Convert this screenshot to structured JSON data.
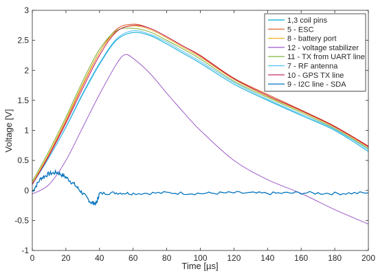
{
  "chart_data": {
    "type": "line",
    "xlabel": "Time [µs]",
    "ylabel": "Voltage [V]",
    "xlim": [
      0,
      200
    ],
    "ylim": [
      -1,
      3
    ],
    "xticks": [
      0,
      20,
      40,
      60,
      80,
      100,
      120,
      140,
      160,
      180,
      200
    ],
    "yticks": [
      -1,
      -0.5,
      0,
      0.5,
      1,
      1.5,
      2,
      2.5,
      3
    ],
    "xtick_labels": [
      "0",
      "20",
      "40",
      "60",
      "80",
      "100",
      "120",
      "140",
      "160",
      "180",
      "200"
    ],
    "ytick_labels": [
      "-1",
      "-0.5",
      "0",
      "0.5",
      "1",
      "1.5",
      "2",
      "2.5",
      "3"
    ],
    "grid": false,
    "legend_position": "top-right",
    "series": [
      {
        "name": "1,3 coil pins",
        "color": "#00a6d6",
        "x": [
          0,
          10,
          20,
          30,
          40,
          50,
          60,
          70,
          80,
          90,
          100,
          120,
          140,
          160,
          180,
          200
        ],
        "y": [
          0.1,
          0.55,
          1.05,
          1.6,
          2.1,
          2.5,
          2.63,
          2.58,
          2.44,
          2.28,
          2.12,
          1.77,
          1.5,
          1.25,
          1.0,
          0.65
        ]
      },
      {
        "name": "5 - ESC",
        "color": "#d95319",
        "x": [
          0,
          10,
          20,
          30,
          40,
          50,
          60,
          70,
          80,
          90,
          100,
          120,
          140,
          160,
          180,
          200
        ],
        "y": [
          0.1,
          0.6,
          1.15,
          1.75,
          2.3,
          2.68,
          2.77,
          2.7,
          2.56,
          2.4,
          2.25,
          1.87,
          1.6,
          1.34,
          1.07,
          0.74
        ]
      },
      {
        "name": "8 - battery port",
        "color": "#edb120",
        "x": [
          0,
          10,
          20,
          30,
          40,
          50,
          60,
          70,
          80,
          90,
          100,
          120,
          140,
          160,
          180,
          200
        ],
        "y": [
          0.12,
          0.62,
          1.18,
          1.77,
          2.3,
          2.65,
          2.74,
          2.68,
          2.54,
          2.38,
          2.22,
          1.85,
          1.57,
          1.32,
          1.05,
          0.72
        ]
      },
      {
        "name": "12 - voltage stabilizer",
        "color": "#9c5ac8",
        "x": [
          0,
          10,
          20,
          30,
          40,
          50,
          55,
          60,
          70,
          80,
          90,
          100,
          120,
          140,
          160,
          180,
          200
        ],
        "y": [
          -0.06,
          0.1,
          0.5,
          1.05,
          1.6,
          2.1,
          2.26,
          2.2,
          1.95,
          1.62,
          1.3,
          1.0,
          0.5,
          0.18,
          -0.05,
          -0.32,
          -0.56
        ]
      },
      {
        "name": "11 - TX from UART line",
        "color": "#77ac30",
        "x": [
          0,
          10,
          20,
          30,
          40,
          50,
          60,
          70,
          80,
          90,
          100,
          120,
          140,
          160,
          180,
          200
        ],
        "y": [
          0.15,
          0.66,
          1.22,
          1.82,
          2.35,
          2.66,
          2.7,
          2.64,
          2.5,
          2.35,
          2.19,
          1.82,
          1.55,
          1.3,
          1.03,
          0.7
        ]
      },
      {
        "name": "7 - RF antenna",
        "color": "#4dbeee",
        "x": [
          0,
          10,
          20,
          30,
          40,
          50,
          60,
          70,
          80,
          90,
          100,
          120,
          140,
          160,
          180,
          200
        ],
        "y": [
          0.1,
          0.55,
          1.06,
          1.62,
          2.12,
          2.52,
          2.66,
          2.6,
          2.47,
          2.31,
          2.15,
          1.8,
          1.52,
          1.27,
          1.02,
          0.68
        ]
      },
      {
        "name": "10 - GPS TX line",
        "color": "#c2185b",
        "x": [
          0,
          10,
          20,
          30,
          40,
          50,
          60,
          70,
          80,
          90,
          100,
          120,
          140,
          160,
          180,
          200
        ],
        "y": [
          0.1,
          0.58,
          1.12,
          1.7,
          2.25,
          2.64,
          2.75,
          2.7,
          2.56,
          2.4,
          2.24,
          1.86,
          1.58,
          1.33,
          1.06,
          0.73
        ]
      },
      {
        "name": "9 - I2C line - SDA",
        "color": "#0072bd",
        "x": [
          0,
          5,
          10,
          15,
          20,
          25,
          30,
          35,
          38,
          40,
          50,
          60,
          80,
          100,
          120,
          140,
          160,
          180,
          200
        ],
        "y": [
          -0.02,
          0.2,
          0.28,
          0.3,
          0.22,
          0.1,
          -0.05,
          -0.2,
          -0.22,
          -0.05,
          -0.04,
          -0.05,
          -0.04,
          -0.05,
          -0.04,
          -0.05,
          -0.04,
          -0.05,
          -0.04
        ]
      }
    ]
  }
}
